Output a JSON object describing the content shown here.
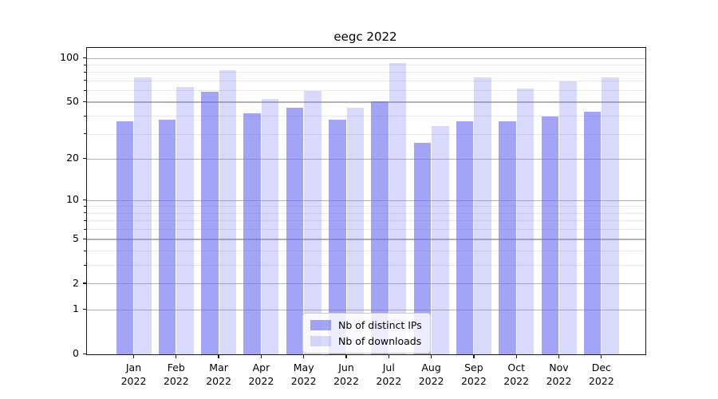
{
  "title": "eegc 2022",
  "chart_data": {
    "type": "bar",
    "title": "eegc 2022",
    "xlabel": "",
    "ylabel": "",
    "yscale": "log1p (symlog-like, shows 0 and log-spaced ticks)",
    "grid": "horizontal major and minor gridlines",
    "legend_position": "lower center",
    "categories": [
      "Jan 2022",
      "Feb 2022",
      "Mar 2022",
      "Apr 2022",
      "May 2022",
      "Jun 2022",
      "Jul 2022",
      "Aug 2022",
      "Sep 2022",
      "Oct 2022",
      "Nov 2022",
      "Dec 2022"
    ],
    "series": [
      {
        "name": "Nb of distinct IPs",
        "hex_on_white": "#a8a8f4",
        "fill": "rgba(108,108,240,0.62)",
        "values": [
          37,
          38,
          59,
          42,
          46,
          38,
          51,
          26,
          37,
          37,
          40,
          43
        ]
      },
      {
        "name": "Nb of downloads",
        "hex_on_white": "#d8d8f9",
        "fill": "rgba(108,108,240,0.26)",
        "values": [
          74,
          64,
          83,
          53,
          60,
          46,
          93,
          34,
          74,
          62,
          70,
          74
        ]
      }
    ],
    "y_ticks": [
      0,
      1,
      2,
      5,
      10,
      20,
      50,
      100
    ],
    "y_tick_labels": [
      "0",
      "1",
      "2",
      "5",
      "10",
      "20",
      "50",
      "100"
    ],
    "y_minor_ticks": [
      3,
      4,
      6,
      7,
      8,
      9,
      30,
      40,
      60,
      70,
      80,
      90
    ],
    "ylim": [
      0,
      118
    ]
  },
  "colors": {
    "spine": "#1a1a1a",
    "grid_major": "#b3b3b3",
    "grid_minor": "#e8e8e8",
    "legend_border": "#cccccc",
    "legend_background": "rgba(255,255,255,0.8)"
  }
}
